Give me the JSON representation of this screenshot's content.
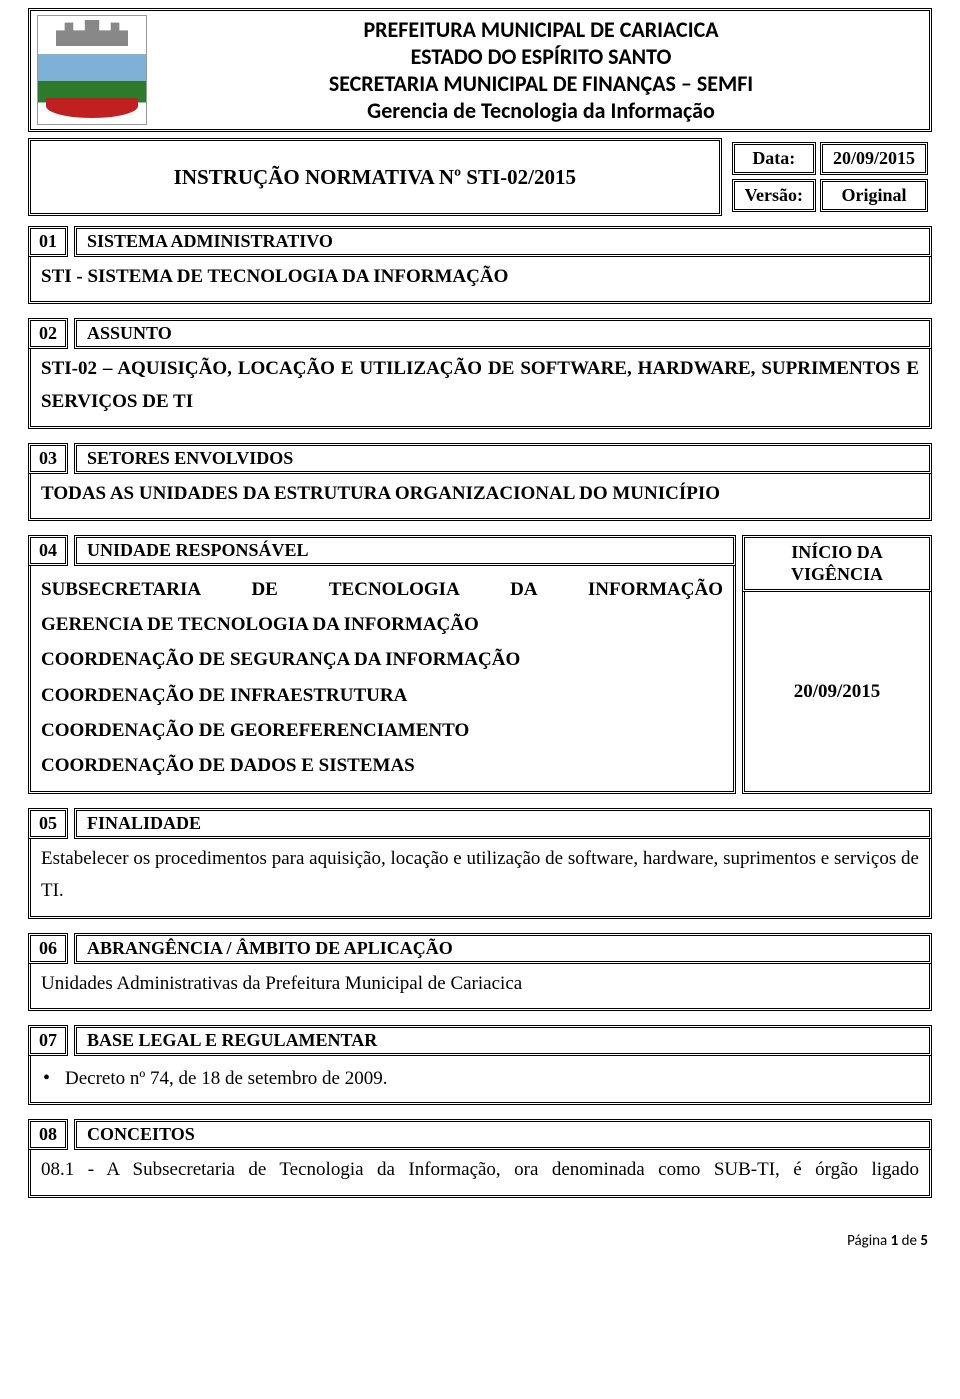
{
  "header": {
    "line1": "PREFEITURA MUNICIPAL DE CARIACICA",
    "line2": "ESTADO DO ESPÍRITO SANTO",
    "line3": "SECRETARIA MUNICIPAL DE FINANÇAS – SEMFI",
    "line4": "Gerencia de Tecnologia da Informação"
  },
  "instrucao": "INSTRUÇÃO NORMATIVA Nº STI-02/2015",
  "meta": {
    "data_label": "Data:",
    "data_value": "20/09/2015",
    "versao_label": "Versão:",
    "versao_value": "Original"
  },
  "s01": {
    "num": "01",
    "title": "SISTEMA ADMINISTRATIVO",
    "body": "STI - SISTEMA DE TECNOLOGIA DA INFORMAÇÃO"
  },
  "s02": {
    "num": "02",
    "title": "ASSUNTO",
    "body": "STI-02 – AQUISIÇÃO, LOCAÇÃO E UTILIZAÇÃO DE SOFTWARE, HARDWARE, SUPRIMENTOS E SERVIÇOS DE TI"
  },
  "s03": {
    "num": "03",
    "title": "SETORES ENVOLVIDOS",
    "body": "TODAS AS UNIDADES DA ESTRUTURA ORGANIZACIONAL DO MUNICÍPIO"
  },
  "s04": {
    "num": "04",
    "title": "UNIDADE RESPONSÁVEL",
    "line1": "SUBSECRETARIA DE TECNOLOGIA DA INFORMAÇÃO",
    "line2": "GERENCIA DE TECNOLOGIA DA INFORMAÇÃO",
    "line3": "COORDENAÇÃO DE SEGURANÇA DA INFORMAÇÃO",
    "line4": "COORDENAÇÃO DE INFRAESTRUTURA",
    "line5": "COORDENAÇÃO DE GEOREFERENCIAMENTO",
    "line6": "COORDENAÇÃO DE DADOS E SISTEMAS",
    "vig_head": "INÍCIO DA VIGÊNCIA",
    "vig_date": "20/09/2015"
  },
  "s05": {
    "num": "05",
    "title": "FINALIDADE",
    "body": "Estabelecer os procedimentos para aquisição, locação e utilização de software, hardware, suprimentos e serviços de TI."
  },
  "s06": {
    "num": "06",
    "title": "ABRANGÊNCIA / ÂMBITO DE APLICAÇÃO",
    "body": "Unidades Administrativas da Prefeitura Municipal de Cariacica"
  },
  "s07": {
    "num": "07",
    "title": "BASE LEGAL E REGULAMENTAR",
    "item": "Decreto nº 74, de 18 de setembro de 2009."
  },
  "s08": {
    "num": "08",
    "title": "CONCEITOS",
    "body": "08.1 - A Subsecretaria de Tecnologia da Informação, ora denominada como SUB-TI, é órgão ligado"
  },
  "footer": {
    "prefix": "Página ",
    "page": "1",
    "sep": " de ",
    "total": "5"
  }
}
